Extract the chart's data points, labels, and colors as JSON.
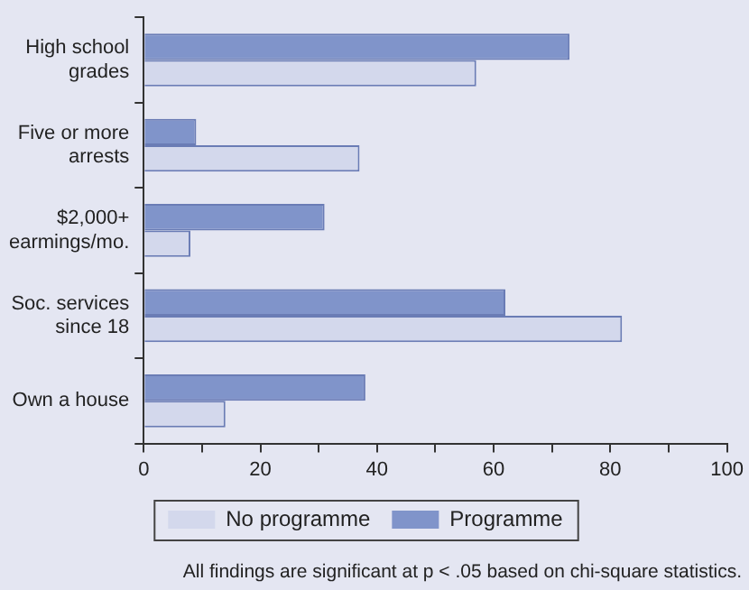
{
  "chart_data": {
    "type": "bar",
    "orientation": "horizontal",
    "categories": [
      "High school grades",
      "Five or more arrests",
      "$2,000+ earmings/mo.",
      "Soc. services since 18",
      "Own a house"
    ],
    "series": [
      {
        "name": "Programme",
        "color": "#8094ca",
        "values": [
          73,
          9,
          31,
          62,
          38
        ]
      },
      {
        "name": "No programme",
        "color": "#d3d8ec",
        "values": [
          57,
          37,
          8,
          82,
          14
        ]
      }
    ],
    "xlim": [
      0,
      100
    ],
    "xticks": [
      0,
      {
        "value": 10,
        "label": null
      },
      20,
      {
        "value": 30,
        "label": null
      },
      40,
      {
        "value": 50,
        "label": null
      },
      60,
      {
        "value": 70,
        "label": null
      },
      80,
      {
        "value": 90,
        "label": null
      },
      100
    ],
    "grid": false,
    "legend": "bottom",
    "annotations": [
      "All findings are significant at p < .05 based on chi-square statistics."
    ]
  }
}
